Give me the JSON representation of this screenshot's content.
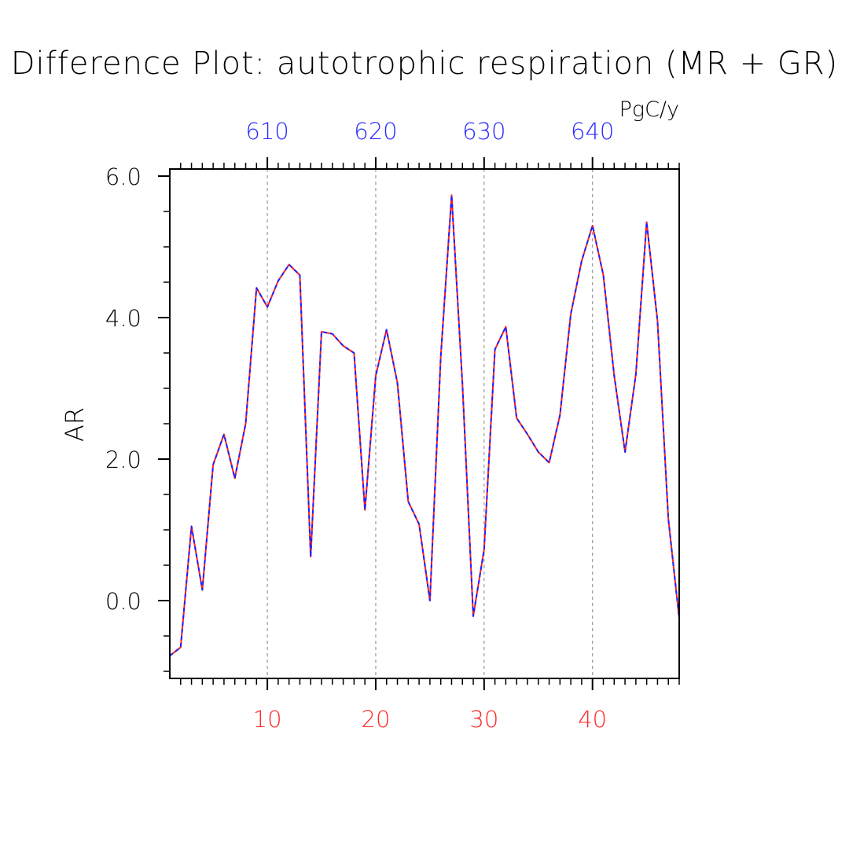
{
  "chart_data": {
    "type": "line",
    "title": "Difference Plot: autotrophic respiration (MR + GR)",
    "units": "PgC/y",
    "ylabel": "AR",
    "xlabel": "",
    "xlim": [
      1,
      48
    ],
    "ylim": [
      -1.1,
      6.1
    ],
    "bottom_axis": {
      "ticks": [
        10,
        20,
        30,
        40
      ],
      "labels": [
        "10",
        "20",
        "30",
        "40"
      ],
      "label_color": "#ff2a2a"
    },
    "top_axis": {
      "ticks": [
        10,
        20,
        30,
        40
      ],
      "labels": [
        "610",
        "620",
        "630",
        "640"
      ],
      "label_color": "#2a2aff"
    },
    "y_ticks": [
      0,
      2,
      4,
      6
    ],
    "y_tick_labels": [
      "0.0",
      "2.0",
      "4.0",
      "6.0"
    ],
    "vertical_gridlines_at": [
      10,
      20,
      30,
      40
    ],
    "grid": "vertical dashed at labeled x ticks",
    "series": [
      {
        "color": "#ff2020",
        "style": "solid",
        "x": [
          1,
          2,
          3,
          4,
          5,
          6,
          7,
          8,
          9,
          10,
          11,
          12,
          13,
          14,
          15,
          16,
          17,
          18,
          19,
          20,
          21,
          22,
          23,
          24,
          25,
          26,
          27,
          28,
          29,
          30,
          31,
          32,
          33,
          34,
          35,
          36,
          37,
          38,
          39,
          40,
          41,
          42,
          43,
          44,
          45,
          46,
          47,
          48
        ],
        "y": [
          -0.78,
          -0.66,
          1.05,
          0.15,
          1.92,
          2.35,
          1.73,
          2.5,
          4.42,
          4.15,
          4.52,
          4.75,
          4.6,
          0.62,
          3.8,
          3.77,
          3.6,
          3.5,
          1.28,
          3.18,
          3.83,
          3.08,
          1.4,
          1.08,
          0.0,
          3.45,
          5.73,
          3.05,
          -0.22,
          0.72,
          3.55,
          3.87,
          2.58,
          2.35,
          2.1,
          1.95,
          2.62,
          4.05,
          4.8,
          5.3,
          4.6,
          3.18,
          2.1,
          3.2,
          5.35,
          3.95,
          1.15,
          -0.25
        ]
      },
      {
        "color": "#2020ff",
        "style": "dashed",
        "x": [
          1,
          2,
          3,
          4,
          5,
          6,
          7,
          8,
          9,
          10,
          11,
          12,
          13,
          14,
          15,
          16,
          17,
          18,
          19,
          20,
          21,
          22,
          23,
          24,
          25,
          26,
          27,
          28,
          29,
          30,
          31,
          32,
          33,
          34,
          35,
          36,
          37,
          38,
          39,
          40,
          41,
          42,
          43,
          44,
          45,
          46,
          47,
          48
        ],
        "y": [
          -0.78,
          -0.66,
          1.05,
          0.15,
          1.92,
          2.35,
          1.73,
          2.5,
          4.42,
          4.15,
          4.52,
          4.75,
          4.6,
          0.62,
          3.8,
          3.77,
          3.6,
          3.5,
          1.28,
          3.18,
          3.83,
          3.08,
          1.4,
          1.08,
          0.0,
          3.45,
          5.73,
          3.05,
          -0.22,
          0.72,
          3.55,
          3.87,
          2.58,
          2.35,
          2.1,
          1.95,
          2.62,
          4.05,
          4.8,
          5.3,
          4.6,
          3.18,
          2.1,
          3.2,
          5.35,
          3.95,
          1.15,
          -0.25
        ]
      }
    ]
  }
}
